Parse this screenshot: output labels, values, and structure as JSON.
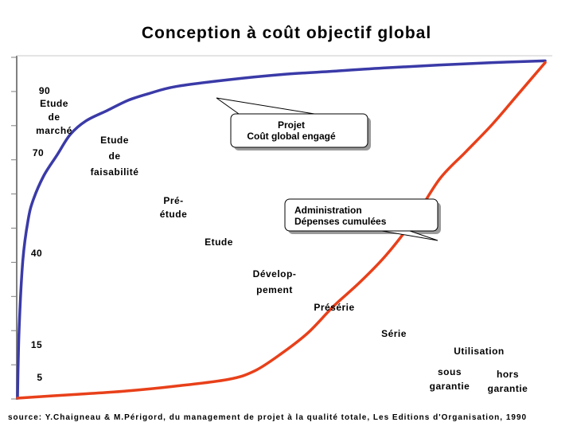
{
  "title": "Conception à coût objectif global",
  "source": "source: Y.Chaigneau & M.Périgord, du management de projet à la qualité totale, Les Editions d'Organisation, 1990",
  "colors": {
    "committed": "#3a3aa8",
    "spent": "#e8401a",
    "callout_fill": "#ffffff",
    "callout_shadow": "#9a9a9a",
    "axis": "#808080"
  },
  "chart_data": {
    "type": "line",
    "title": "Conception à coût objectif global",
    "xlabel": "",
    "ylabel": "",
    "series": [
      {
        "name": "Coût global engagé",
        "x": [
          0,
          0.3,
          1,
          2,
          3,
          5,
          7.5,
          10,
          13,
          17,
          21,
          25,
          30,
          40,
          50,
          60,
          70,
          80,
          90,
          100
        ],
        "y": [
          0,
          20,
          40,
          52,
          58,
          65,
          71,
          77,
          81,
          84,
          87,
          89,
          91,
          93,
          94.5,
          95.5,
          96.5,
          97.3,
          98,
          98.5
        ]
      },
      {
        "name": "Dépenses cumulées",
        "x": [
          0,
          10,
          20,
          30,
          40,
          45,
          50,
          55,
          60,
          65,
          70,
          75,
          80,
          85,
          90,
          95,
          100
        ],
        "y": [
          0,
          1,
          2,
          3.5,
          5.5,
          8,
          13,
          19,
          27,
          34,
          42,
          52,
          64,
          72,
          80,
          89,
          98
        ]
      }
    ],
    "ytick_labels": [
      "90",
      "70",
      "40",
      "15",
      "5"
    ],
    "phase_labels": [
      [
        "Etude",
        "de",
        "marché"
      ],
      [
        "Etude",
        "de",
        "faisabilité"
      ],
      [
        "Pré-",
        "étude"
      ],
      [
        "Etude"
      ],
      [
        "Dévelop-",
        "pement"
      ],
      [
        "Présérie"
      ],
      [
        "Série"
      ],
      [
        "Utilisation"
      ],
      [
        "sous",
        "garantie"
      ],
      [
        "hors",
        "garantie"
      ]
    ],
    "callouts": [
      {
        "lines": [
          "Projet",
          "Coût global engagé"
        ]
      },
      {
        "lines": [
          "Administration",
          "Dépenses cumulées"
        ]
      }
    ],
    "grid": false,
    "legend": "none"
  }
}
